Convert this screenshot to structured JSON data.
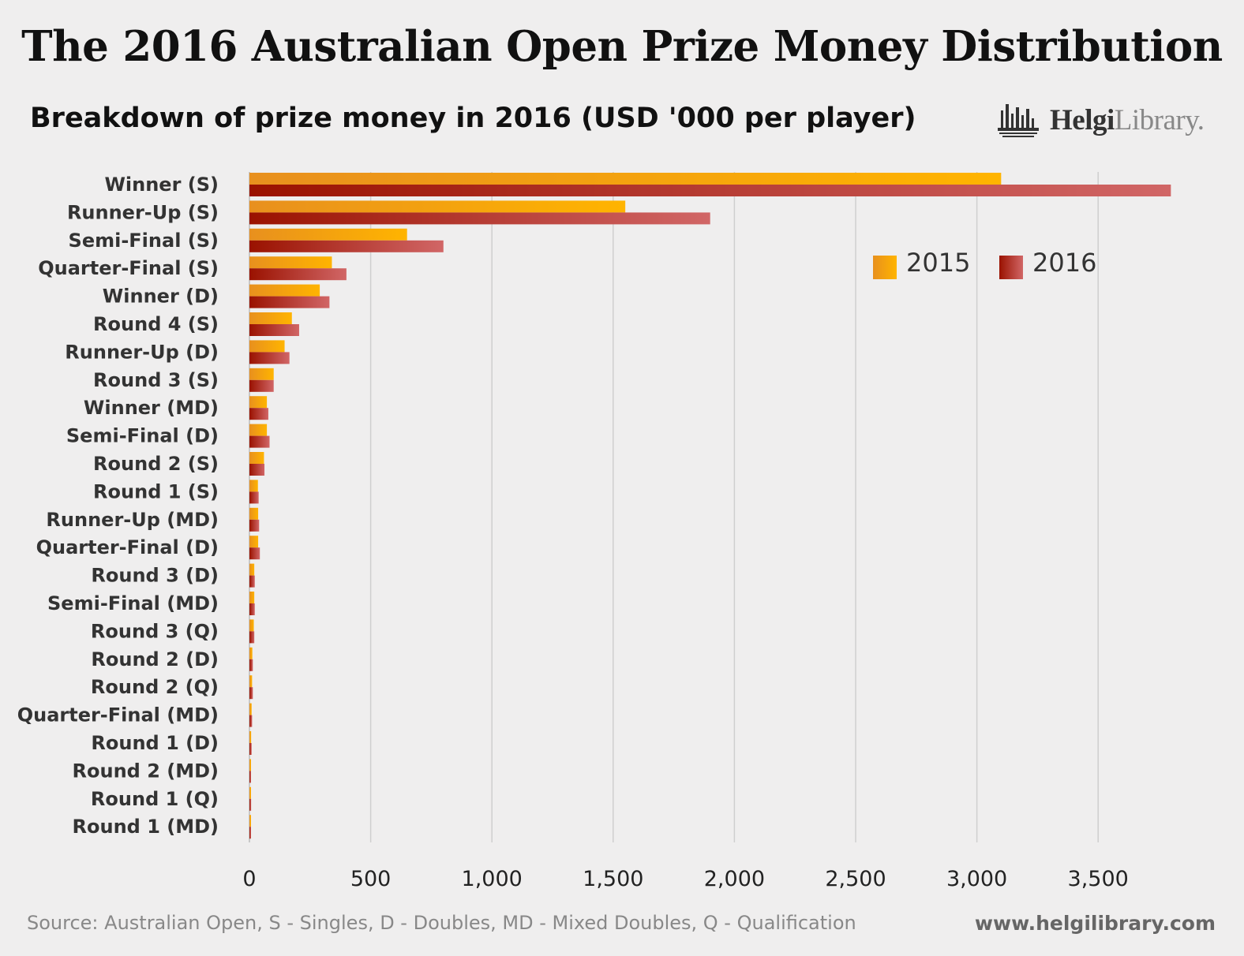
{
  "header": {
    "title": "The 2016 Australian Open Prize Money Distribution",
    "subtitle": "Breakdown of prize money in 2016 (USD '000 per player)"
  },
  "brand": {
    "name_part1": "Helgi",
    "name_part2": "Library.",
    "icon": "bar-chart-logo-icon"
  },
  "footer": {
    "source": "Source: Australian Open, S - Singles, D - Doubles, MD - Mixed Doubles, Q - Qualification",
    "website": "www.helgilibrary.com"
  },
  "colors": {
    "series_2015": "#f5a800",
    "series_2015_dark": "#e88a1a",
    "series_2016": "#9e1300",
    "series_2016_light": "#d06060",
    "gridline": "#cfcfcf",
    "background": "#efeeee"
  },
  "chart_data": {
    "type": "bar",
    "orientation": "horizontal",
    "title": "The 2016 Australian Open Prize Money Distribution",
    "subtitle": "Breakdown of prize money in 2016 (USD '000 per player)",
    "xlabel": "",
    "ylabel": "",
    "xlim": [
      0,
      3800
    ],
    "xticks": [
      0,
      500,
      1000,
      1500,
      2000,
      2500,
      3000,
      3500
    ],
    "xtick_labels": [
      "0",
      "500",
      "1,000",
      "1,500",
      "2,000",
      "2,500",
      "3,000",
      "3,500"
    ],
    "grid": true,
    "legend_position": "top-right",
    "categories": [
      "Winner (S)",
      "Runner-Up (S)",
      "Semi-Final (S)",
      "Quarter-Final (S)",
      "Winner (D)",
      "Round 4 (S)",
      "Runner-Up (D)",
      "Round 3 (S)",
      "Winner (MD)",
      "Semi-Final (D)",
      "Round 2 (S)",
      "Round 1 (S)",
      "Runner-Up (MD)",
      "Quarter-Final (D)",
      "Round 3 (D)",
      "Semi-Final (MD)",
      "Round 3 (Q)",
      "Round 2 (D)",
      "Round 2 (Q)",
      "Quarter-Final (MD)",
      "Round 1 (D)",
      "Round 2 (MD)",
      "Round 1 (Q)",
      "Round 1 (MD)"
    ],
    "series": [
      {
        "name": "2015",
        "values": [
          3100,
          1550,
          650,
          340,
          290,
          175,
          145,
          100,
          72,
          72,
          60,
          35,
          36,
          36,
          20,
          20,
          18,
          12,
          11,
          9,
          7,
          5,
          6,
          4
        ]
      },
      {
        "name": "2016",
        "values": [
          3800,
          1900,
          800,
          400,
          330,
          205,
          165,
          100,
          78,
          83,
          62,
          38,
          40,
          43,
          22,
          22,
          20,
          14,
          14,
          11,
          9,
          6,
          7,
          5
        ]
      }
    ]
  }
}
